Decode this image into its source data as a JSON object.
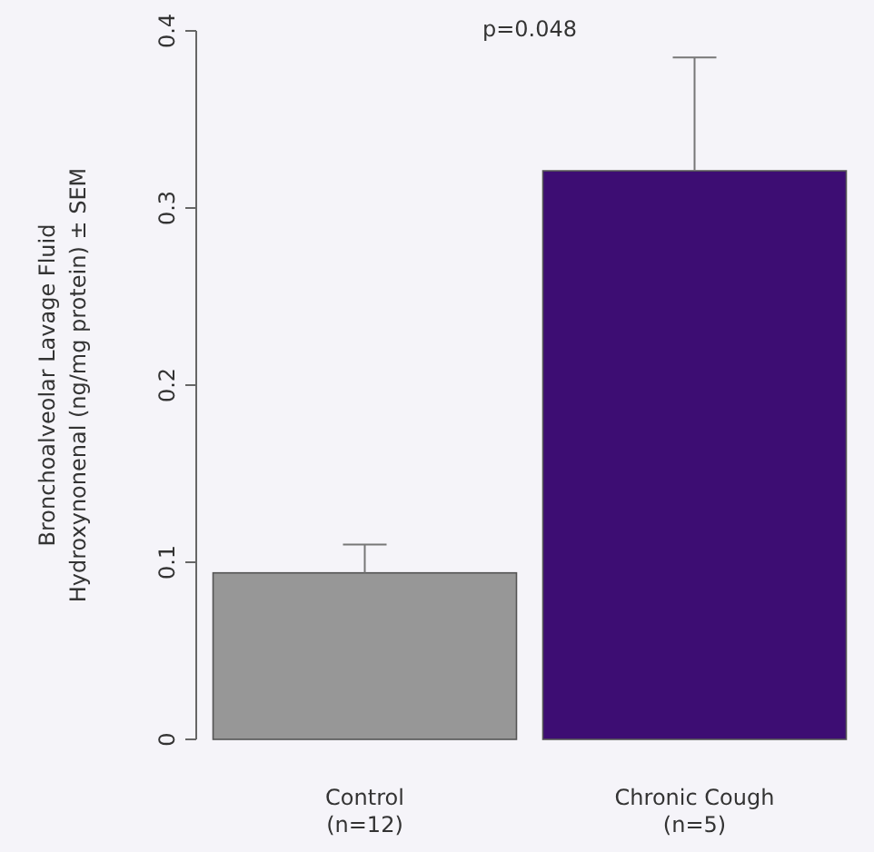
{
  "chart_data": {
    "type": "bar",
    "ylabel": "Bronchoalveolar Lavage Fluid\nHydroxynonenal (ng/mg protein) ± SEM",
    "categories": [
      "Control\n(n=12)",
      "Chronic Cough\n(n=5)"
    ],
    "values": [
      0.094,
      0.321
    ],
    "colors": [
      "#979797",
      "#3d0d73"
    ],
    "errors": [
      [
        0.094,
        0.11
      ],
      [
        0.321,
        0.385
      ]
    ],
    "ylim": [
      0,
      0.4
    ],
    "yticks": [
      0,
      0.1,
      0.2,
      0.3,
      0.4
    ],
    "annotations": [
      "p=0.048"
    ]
  }
}
